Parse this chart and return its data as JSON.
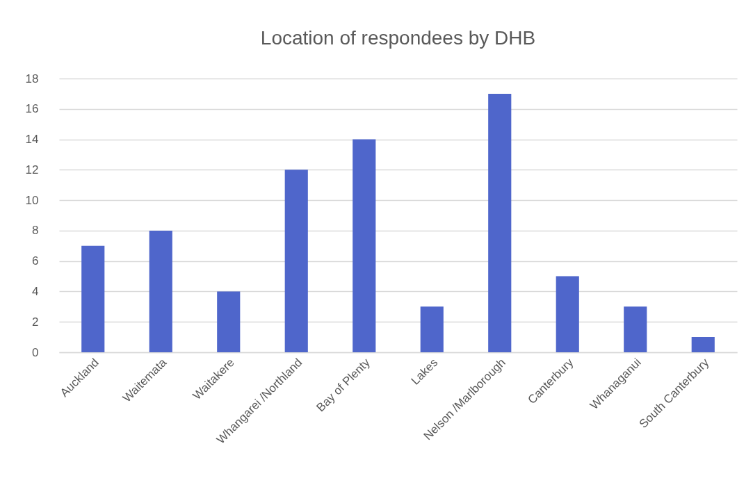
{
  "chart_data": {
    "type": "bar",
    "title": "Location of respondees by DHB",
    "categories": [
      "Auckland",
      "Waitemata",
      "Waitakere",
      "Whangarei /Northland",
      "Bay of Plenty",
      "Lakes",
      "Nelson /Marlborough",
      "Canterbury",
      "Whanaganui",
      "South Canterbury"
    ],
    "values": [
      7,
      8,
      4,
      12,
      14,
      3,
      17,
      5,
      3,
      1
    ],
    "color": "#4f66cb",
    "ylim": [
      0,
      18
    ],
    "yticks": [
      0,
      2,
      4,
      6,
      8,
      10,
      12,
      14,
      16,
      18
    ],
    "grid": "y"
  }
}
